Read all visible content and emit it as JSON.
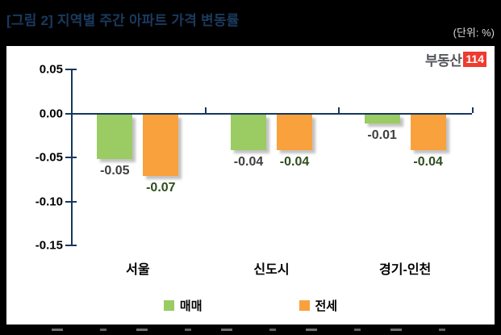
{
  "header": {
    "title": "[그림 2] 지역별 주간 아파트 가격 변동률",
    "unit_label": "(단위: %)"
  },
  "logo": {
    "text": "부동산",
    "badge": "114",
    "badge_color": "#EE3B30",
    "text_color": "#55565B"
  },
  "chart_data": {
    "type": "bar",
    "title": "지역별 주간 아파트 가격 변동률",
    "unit": "%",
    "categories": [
      "서울",
      "신도시",
      "경기-인천"
    ],
    "series": [
      {
        "name": "매매",
        "color": "#9BCB63",
        "label_color": "#3F3F3F",
        "values": [
          -0.05,
          -0.04,
          -0.01
        ],
        "data_labels": [
          "-0.05",
          "-0.04",
          "-0.01"
        ]
      },
      {
        "name": "전세",
        "color": "#F9A13C",
        "label_color": "#2F4D1E",
        "values": [
          -0.07,
          -0.04,
          -0.04
        ],
        "data_labels": [
          "-0.07",
          "-0.04",
          "-0.04"
        ]
      }
    ],
    "y_axis": {
      "tick_labels": [
        "0.05",
        "0.00",
        "-0.05",
        "-0.10",
        "-0.15"
      ],
      "tick_values": [
        0.05,
        0.0,
        -0.05,
        -0.1,
        -0.15
      ],
      "min": -0.15,
      "max": 0.05
    },
    "grid": false,
    "legend_position": "bottom",
    "axis_color": "#17375E"
  },
  "colors": {
    "background": "#000000",
    "panel": "#FFFFFF",
    "title": "#1A3A5F",
    "unit": "#D9D9D9"
  }
}
